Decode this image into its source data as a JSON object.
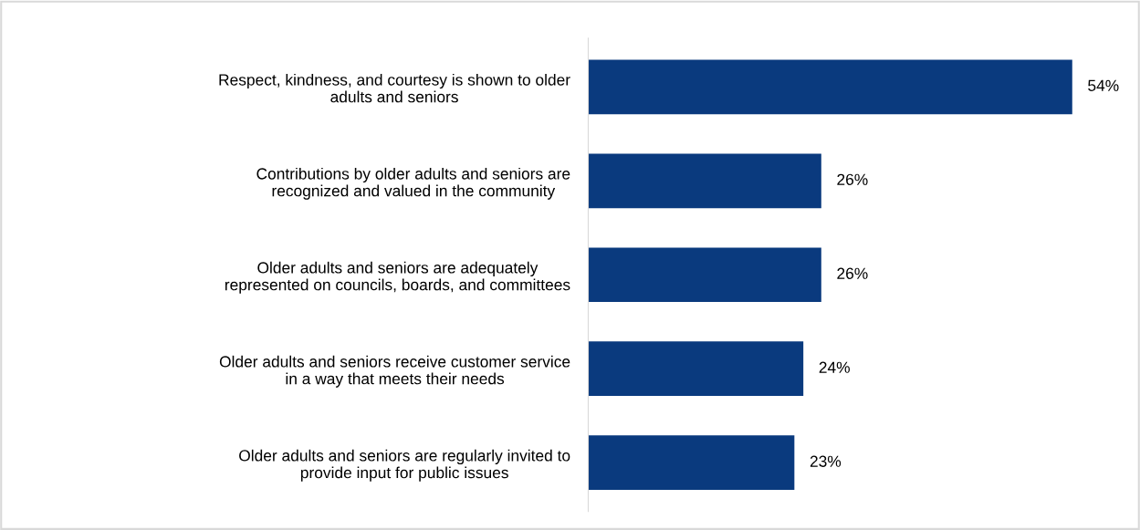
{
  "chart_data": {
    "type": "bar",
    "orientation": "horizontal",
    "categories": [
      "Respect, kindness, and courtesy is shown to older\nadults and seniors",
      "Contributions by older adults and seniors are\nrecognized and valued in the community",
      "Older adults and seniors are adequately\nrepresented on councils, boards, and committees",
      "Older adults and seniors receive customer service\nin a way that meets their needs",
      "Older adults and seniors are regularly invited to\nprovide input for public issues"
    ],
    "values": [
      54,
      26,
      26,
      24,
      23
    ],
    "color": "#0a3a7e",
    "data_labels": true,
    "value_labels": [
      "54%",
      "26%",
      "26%",
      "24%",
      "23%"
    ],
    "grid": false,
    "legend": false
  }
}
